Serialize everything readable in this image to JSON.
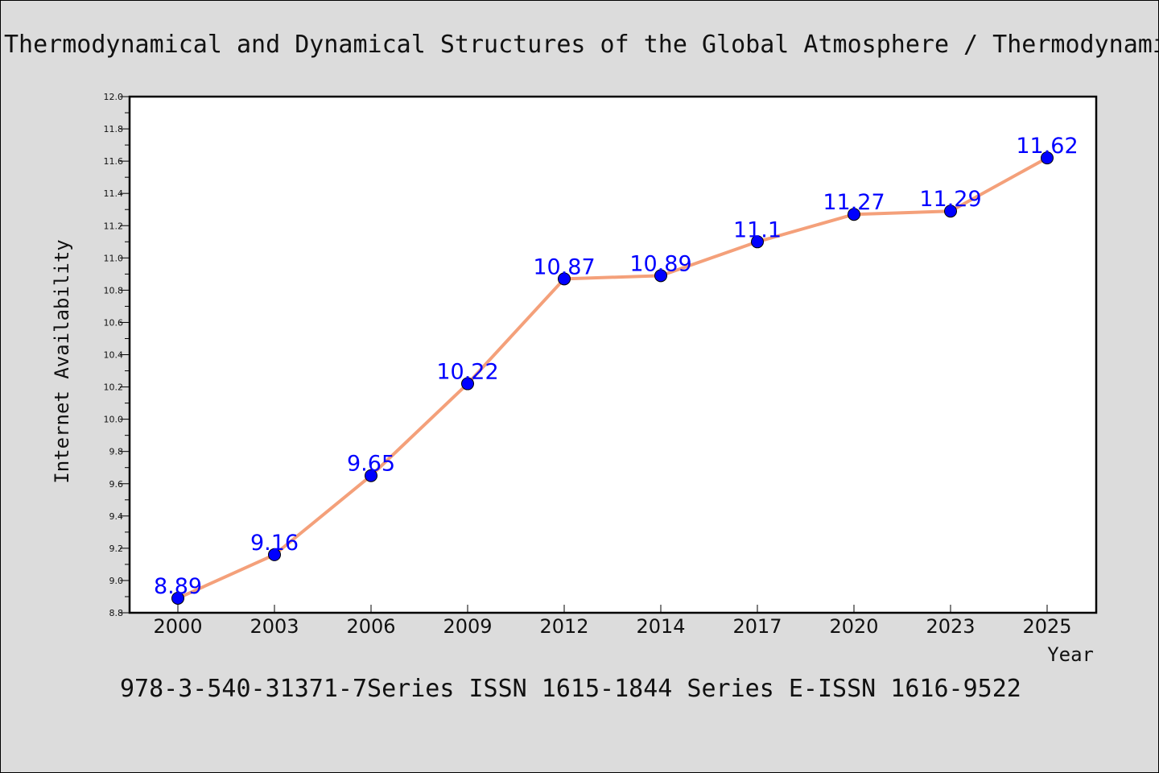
{
  "header": {
    "title": "Thermodynamical and Dynamical Structures of the Global Atmosphere / Thermodynamical and Dynamical Structures of the Global Atmosphere"
  },
  "footer": {
    "text": "978-3-540-31371-7Series ISSN 1615-1844 Series E-ISSN 1616-9522"
  },
  "chart_data": {
    "type": "line",
    "title": "Thermodynamical and Dynamical Structures of the Global Atmosphere / Thermodynamical and Dynamical Structures of the Global Atmosphere",
    "xlabel": "Year",
    "ylabel": "Internet Availability",
    "categories": [
      "2000",
      "2003",
      "2006",
      "2009",
      "2012",
      "2014",
      "2017",
      "2020",
      "2023",
      "2025"
    ],
    "series": [
      {
        "values": [
          8.89,
          9.16,
          9.65,
          10.22,
          10.87,
          10.89,
          11.1,
          11.27,
          11.29,
          11.62
        ],
        "labels": [
          "8.89",
          "9.16",
          "9.65",
          "10.22",
          "10.87",
          "10.89",
          "11.1",
          "11.27",
          "11.29",
          "11.62"
        ]
      }
    ],
    "ylim": [
      8.8,
      12.0
    ],
    "yticks": [
      "8.8",
      "9.0",
      "9.2",
      "9.4",
      "9.6",
      "9.8",
      "10.0",
      "10.2",
      "10.4",
      "10.6",
      "10.8",
      "11.0",
      "11.2",
      "11.4",
      "11.6",
      "11.8",
      "12.0"
    ],
    "grid": false,
    "legend": "none",
    "colors": {
      "line": "#f4a07a",
      "marker": "#0000ff",
      "label": "#0000ff",
      "background": "#dcdcdc",
      "plot_background": "#ffffff"
    }
  }
}
